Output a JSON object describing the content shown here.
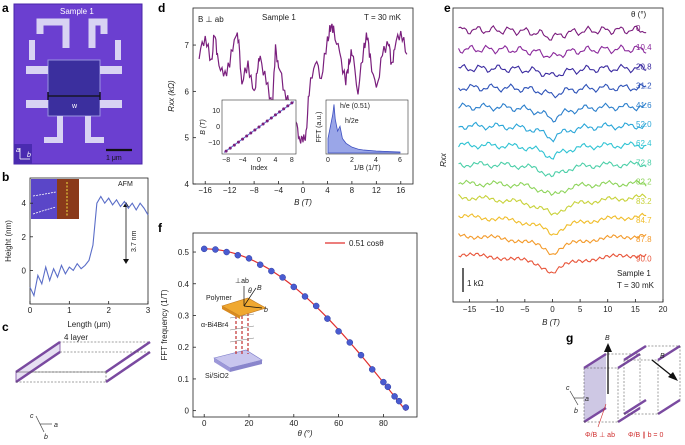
{
  "panel_labels": [
    "a",
    "b",
    "c",
    "d",
    "e",
    "f",
    "g"
  ],
  "panel_a": {
    "sample": "Sample 1",
    "w": "w",
    "ax_a": "a",
    "ax_b": "b",
    "scalebar": "1 μm",
    "colors": {
      "bg": "#6b3fd0",
      "contact": "#c9c3ee"
    }
  },
  "panel_b": {
    "afm": "AFM",
    "step": "3.7 nm",
    "chart_data": {
      "type": "line",
      "xlabel": "Length (μm)",
      "ylabel": "Height (nm)",
      "xlim": [
        0,
        3
      ],
      "ylim": [
        -2,
        5.5
      ],
      "xticks": [
        "0",
        "1",
        "2",
        "3"
      ],
      "yticks": [
        "0",
        "2",
        "4"
      ],
      "x": [
        0.0,
        0.1,
        0.2,
        0.3,
        0.4,
        0.5,
        0.6,
        0.7,
        0.8,
        0.9,
        1.0,
        1.1,
        1.2,
        1.3,
        1.4,
        1.5,
        1.6,
        1.7,
        1.8,
        1.9,
        2.0,
        2.1,
        2.2,
        2.3,
        2.4,
        2.5,
        2.6,
        2.7,
        2.8,
        2.9,
        3.0
      ],
      "y": [
        -1.0,
        -1.5,
        -0.3,
        -0.8,
        0.2,
        -0.6,
        0.1,
        -0.4,
        0.3,
        -0.2,
        0.2,
        0.0,
        0.4,
        0.1,
        0.3,
        0.6,
        1.5,
        4.0,
        4.4,
        4.0,
        4.3,
        3.9,
        4.2,
        3.8,
        4.1,
        3.7,
        4.0,
        3.6,
        4.0,
        3.7,
        3.3
      ],
      "color": "#5b6ec8"
    }
  },
  "panel_c": {
    "title": "4 layer",
    "ax_a": "a",
    "ax_b": "b",
    "ax_c": "c"
  },
  "panel_d": {
    "field": "B ⊥ ab",
    "sample": "Sample 1",
    "temperature": "T = 30 mK",
    "chart_data": {
      "type": "line",
      "xlabel": "B (T)",
      "ylabel": "Rxx (kΩ)",
      "xlim": [
        -18,
        18
      ],
      "ylim": [
        4,
        7.8
      ],
      "xticks": [
        "−16",
        "−12",
        "−8",
        "−4",
        "0",
        "4",
        "8",
        "12",
        "16"
      ],
      "yticks": [
        "4",
        "5",
        "6",
        "7"
      ],
      "x": [
        -17.0,
        -16.0,
        -15.0,
        -14.5,
        -14.0,
        -13.0,
        -12.0,
        -11.0,
        -10.5,
        -10.0,
        -9.0,
        -8.0,
        -7.5,
        -7.0,
        -6.0,
        -5.0,
        -4.5,
        -4.0,
        -3.0,
        -2.0,
        -1.0,
        -0.5,
        0.0,
        0.5,
        1.0,
        2.0,
        3.0,
        4.0,
        4.5,
        5.0,
        6.0,
        7.0,
        7.5,
        8.0,
        9.0,
        10.0,
        10.5,
        11.0,
        12.0,
        13.0,
        14.0,
        14.5,
        15.0,
        16.0,
        17.0
      ],
      "y": [
        6.8,
        7.2,
        6.6,
        7.3,
        6.7,
        6.3,
        6.6,
        7.3,
        7.0,
        6.2,
        6.6,
        5.9,
        6.5,
        6.7,
        6.2,
        5.7,
        6.9,
        6.6,
        6.0,
        5.6,
        5.2,
        5.0,
        4.9,
        5.1,
        6.0,
        6.7,
        6.3,
        7.1,
        7.4,
        7.3,
        6.8,
        6.2,
        6.6,
        6.9,
        6.0,
        7.0,
        7.2,
        6.7,
        6.0,
        6.8,
        7.1,
        6.5,
        7.0,
        7.3,
        6.8
      ],
      "color": "#7a1f7d"
    },
    "inset_left": {
      "xlabel": "Index",
      "ylabel": "B (T)",
      "xticks": [
        "−8",
        "−4",
        "0",
        "4",
        "8"
      ],
      "yticks": [
        "−10",
        "0",
        "10"
      ],
      "x": [
        -8,
        -7,
        -6,
        -5,
        -4,
        -3,
        -2,
        -1,
        0,
        1,
        2,
        3,
        4,
        5,
        6,
        7,
        8
      ],
      "y": [
        -15.2,
        -13.3,
        -11.4,
        -9.5,
        -7.6,
        -5.7,
        -3.8,
        -1.9,
        0,
        1.9,
        3.8,
        5.7,
        7.6,
        9.5,
        11.4,
        13.3,
        15.2
      ]
    },
    "inset_right": {
      "xlabel": "1/B (1/T)",
      "ylabel": "FFT (a.u.)",
      "xticks": [
        "0",
        "2",
        "4",
        "6"
      ],
      "peak1": "h/e (0.51)",
      "peak2": "h/2e",
      "x": [
        0.0,
        0.2,
        0.4,
        0.5,
        0.6,
        0.8,
        1.0,
        1.2,
        1.5,
        2.0,
        2.5,
        3.0,
        4.0,
        5.0,
        6.0
      ],
      "y": [
        0.3,
        0.55,
        0.8,
        1.0,
        0.7,
        0.45,
        0.55,
        0.3,
        0.2,
        0.12,
        0.08,
        0.06,
        0.04,
        0.03,
        0.02
      ]
    }
  },
  "panel_e": {
    "ylabel": "Rxx",
    "theta_header": "θ (°)",
    "angles": [
      "0",
      "10.4",
      "20.8",
      "31.2",
      "41.6",
      "52.0",
      "62.4",
      "72.8",
      "82.2",
      "83.2",
      "84.7",
      "87.8",
      "90.0"
    ],
    "colors": [
      "#7a1a7c",
      "#8b2a9c",
      "#3a2aa0",
      "#2d52b8",
      "#2b7fcc",
      "#2aa6d8",
      "#2fc3d3",
      "#4ccfa8",
      "#8dd45a",
      "#c8d23a",
      "#f0bd2a",
      "#f39a2a",
      "#e8553a"
    ],
    "scalebar": "1 kΩ",
    "sample": "Sample 1",
    "temperature": "T = 30 mK",
    "xlabel": "B (T)",
    "xticks": [
      "−15",
      "−10",
      "−5",
      "0",
      "5",
      "10",
      "15",
      "20"
    ]
  },
  "panel_f": {
    "legend": "0.51 cosθ",
    "labels": {
      "perp": "⊥ab",
      "theta": "θ",
      "B": "B",
      "b": "b",
      "polymer": "Polymer",
      "crystal": "α-Bi4Br4",
      "substrate": "Si/SiO2"
    },
    "chart_data": {
      "type": "scatter",
      "xlabel": "θ (°)",
      "ylabel": "FFT frequency (1/T)",
      "xlim": [
        -5,
        95
      ],
      "ylim": [
        -0.02,
        0.56
      ],
      "xticks": [
        "0",
        "20",
        "40",
        "60",
        "80"
      ],
      "yticks": [
        "0",
        "0.1",
        "0.2",
        "0.3",
        "0.4",
        "0.5"
      ],
      "x": [
        0,
        5,
        10,
        15,
        20,
        25,
        30,
        35,
        40,
        45,
        50,
        55,
        60,
        65,
        70,
        75,
        80,
        82,
        85,
        87,
        90
      ],
      "y": [
        0.51,
        0.508,
        0.5,
        0.49,
        0.48,
        0.46,
        0.44,
        0.42,
        0.39,
        0.36,
        0.33,
        0.29,
        0.25,
        0.215,
        0.175,
        0.13,
        0.09,
        0.075,
        0.045,
        0.03,
        0.01
      ],
      "point_color": "#4a5bd0",
      "fit_color": "#e0302f"
    }
  },
  "panel_g": {
    "B": "B",
    "ax_a": "a",
    "ax_b": "b",
    "ax_c": "c",
    "perp": "Φ/B ⊥ ab",
    "para": "Φ/B ∥ b = 0"
  }
}
